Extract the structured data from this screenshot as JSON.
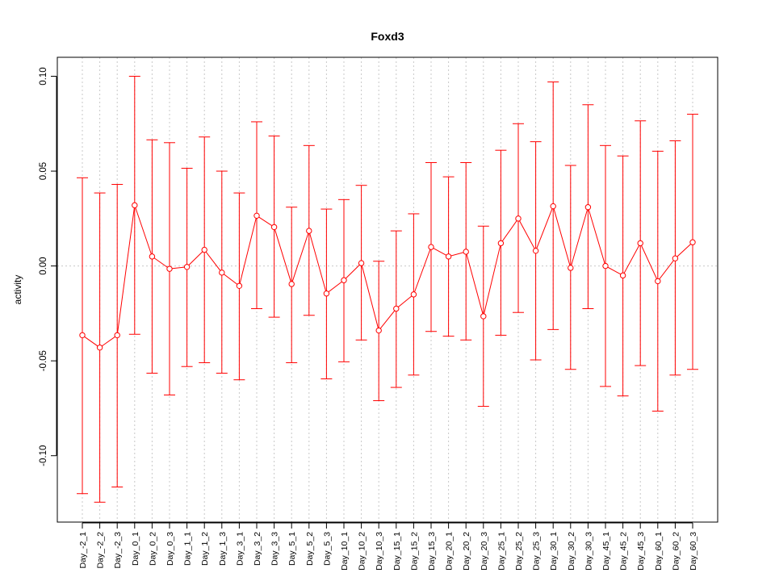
{
  "chart_data": {
    "type": "line",
    "title": "Foxd3",
    "xlabel": "",
    "ylabel": "activity",
    "ylim": [
      -0.135,
      0.11
    ],
    "yticks": [
      -0.1,
      -0.05,
      0.0,
      0.05,
      0.1
    ],
    "ytick_labels": [
      "-0.10",
      "-0.05",
      "0.00",
      "0.05",
      "0.10"
    ],
    "grid": true,
    "color": "#ff0000",
    "categories": [
      "Day_-2_1",
      "Day_-2_2",
      "Day_-2_3",
      "Day_0_1",
      "Day_0_2",
      "Day_0_3",
      "Day_1_1",
      "Day_1_2",
      "Day_1_3",
      "Day_3_1",
      "Day_3_2",
      "Day_3_3",
      "Day_5_1",
      "Day_5_2",
      "Day_5_3",
      "Day_10_1",
      "Day_10_2",
      "Day_10_3",
      "Day_15_1",
      "Day_15_2",
      "Day_15_3",
      "Day_20_1",
      "Day_20_2",
      "Day_20_3",
      "Day_25_1",
      "Day_25_2",
      "Day_25_3",
      "Day_30_1",
      "Day_30_2",
      "Day_30_3",
      "Day_45_1",
      "Day_45_2",
      "Day_45_3",
      "Day_60_1",
      "Day_60_2",
      "Day_60_3"
    ],
    "values": [
      -0.0365,
      -0.043,
      -0.0365,
      0.032,
      0.005,
      -0.0015,
      -0.0005,
      0.0085,
      -0.0035,
      -0.0105,
      0.0265,
      0.0205,
      -0.0095,
      0.0185,
      -0.0145,
      -0.0075,
      0.0015,
      -0.034,
      -0.0225,
      -0.015,
      0.01,
      0.005,
      0.0075,
      -0.0265,
      0.012,
      0.025,
      0.008,
      0.0315,
      -0.001,
      0.031,
      0.0,
      -0.005,
      0.012,
      -0.008,
      0.004,
      0.0125
    ],
    "upper": [
      0.0465,
      0.0385,
      0.043,
      0.1,
      0.0665,
      0.065,
      0.0515,
      0.068,
      0.05,
      0.0385,
      0.076,
      0.0685,
      0.031,
      0.0635,
      0.03,
      0.035,
      0.0425,
      0.0025,
      0.0185,
      0.0275,
      0.0545,
      0.047,
      0.0545,
      0.021,
      0.061,
      0.075,
      0.0655,
      0.097,
      0.053,
      0.085,
      0.0635,
      0.058,
      0.0765,
      0.0605,
      0.066,
      0.08
    ],
    "lower": [
      -0.12,
      -0.1245,
      -0.1165,
      -0.036,
      -0.0565,
      -0.068,
      -0.053,
      -0.051,
      -0.0565,
      -0.06,
      -0.0225,
      -0.027,
      -0.051,
      -0.026,
      -0.0595,
      -0.0505,
      -0.039,
      -0.071,
      -0.064,
      -0.0575,
      -0.0345,
      -0.037,
      -0.039,
      -0.074,
      -0.0365,
      -0.0245,
      -0.0495,
      -0.0335,
      -0.0545,
      -0.0225,
      -0.0635,
      -0.0685,
      -0.0525,
      -0.0765,
      -0.0575,
      -0.0545
    ]
  }
}
